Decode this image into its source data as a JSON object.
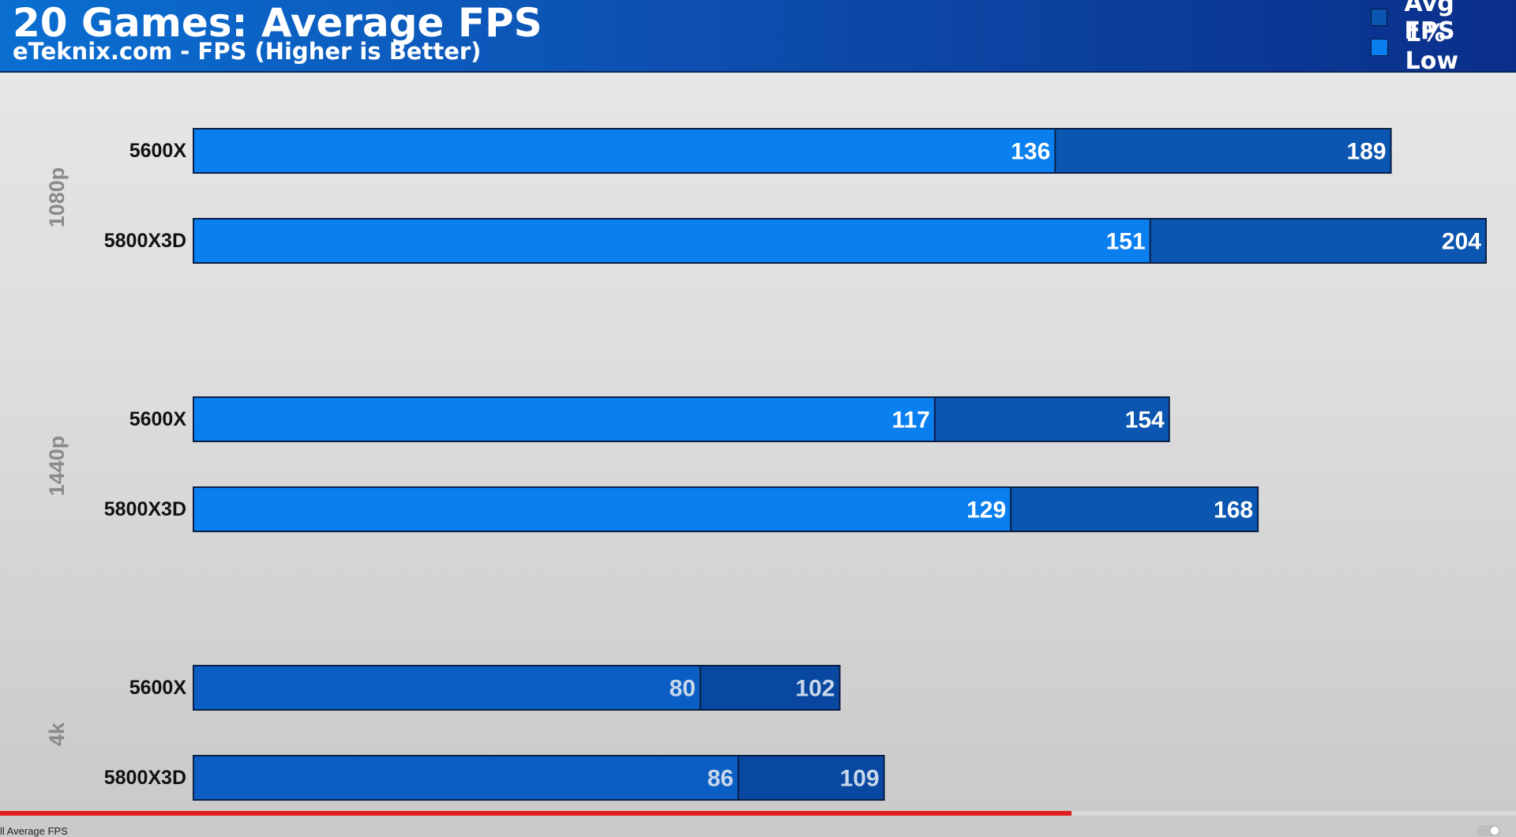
{
  "header": {
    "title": "20 Games: Average FPS",
    "subtitle": "eTeknix.com - FPS (Higher is Better)"
  },
  "legend": [
    {
      "label": "Avg FPS",
      "color": "#0a56b0"
    },
    {
      "label": "1% Low",
      "color": "#0a7fef"
    }
  ],
  "chart_data": {
    "type": "bar",
    "orientation": "horizontal",
    "title": "20 Games: Average FPS",
    "subtitle": "eTeknix.com - FPS (Higher is Better)",
    "xlim": [
      0,
      205
    ],
    "grid": false,
    "legend_position": "top-right",
    "groups": [
      {
        "label": "1080p",
        "rows": [
          {
            "label": "5600X",
            "avg": 189,
            "low": 136
          },
          {
            "label": "5800X3D",
            "avg": 204,
            "low": 151
          }
        ]
      },
      {
        "label": "1440p",
        "rows": [
          {
            "label": "5600X",
            "avg": 154,
            "low": 117
          },
          {
            "label": "5800X3D",
            "avg": 168,
            "low": 129
          }
        ]
      },
      {
        "label": "4k",
        "rows": [
          {
            "label": "5600X",
            "avg": 102,
            "low": 80
          },
          {
            "label": "5800X3D",
            "avg": 109,
            "low": 86
          }
        ]
      }
    ],
    "series": [
      {
        "name": "Avg FPS",
        "color": "#0a56b0"
      },
      {
        "name": "1% Low",
        "color": "#0a7fef"
      }
    ]
  },
  "footer": {
    "chapter_label": "ll Average FPS",
    "progress": 0.707
  }
}
